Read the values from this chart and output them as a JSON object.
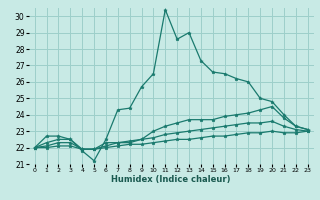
{
  "xlabel": "Humidex (Indice chaleur)",
  "bg_color": "#c8eae5",
  "grid_color": "#9dcfca",
  "line_color": "#1a7a6e",
  "xlim": [
    -0.5,
    23.5
  ],
  "ylim": [
    21,
    30.5
  ],
  "yticks": [
    21,
    22,
    23,
    24,
    25,
    26,
    27,
    28,
    29,
    30
  ],
  "xticks": [
    0,
    1,
    2,
    3,
    4,
    5,
    6,
    7,
    8,
    9,
    10,
    11,
    12,
    13,
    14,
    15,
    16,
    17,
    18,
    19,
    20,
    21,
    22,
    23
  ],
  "series": [
    {
      "x": [
        0,
        1,
        2,
        3,
        4,
        5,
        6,
        7,
        8,
        9,
        10,
        11,
        12,
        13,
        14,
        15,
        16,
        17,
        18,
        19,
        20,
        21,
        22,
        23
      ],
      "y": [
        22.0,
        22.7,
        22.7,
        22.5,
        21.8,
        21.2,
        22.5,
        24.3,
        24.4,
        25.7,
        26.5,
        30.4,
        28.6,
        29.0,
        27.3,
        26.6,
        26.5,
        26.2,
        26.0,
        25.0,
        24.8,
        24.0,
        23.3,
        23.1
      ]
    },
    {
      "x": [
        0,
        1,
        2,
        3,
        4,
        5,
        6,
        7,
        8,
        9,
        10,
        11,
        12,
        13,
        14,
        15,
        16,
        17,
        18,
        19,
        20,
        21,
        22,
        23
      ],
      "y": [
        22.0,
        22.3,
        22.5,
        22.5,
        21.9,
        21.9,
        22.3,
        22.3,
        22.3,
        22.5,
        23.0,
        23.3,
        23.5,
        23.7,
        23.7,
        23.7,
        23.9,
        24.0,
        24.1,
        24.3,
        24.5,
        23.8,
        23.3,
        23.1
      ]
    },
    {
      "x": [
        0,
        1,
        2,
        3,
        4,
        5,
        6,
        7,
        8,
        9,
        10,
        11,
        12,
        13,
        14,
        15,
        16,
        17,
        18,
        19,
        20,
        21,
        22,
        23
      ],
      "y": [
        22.0,
        22.1,
        22.3,
        22.3,
        21.9,
        21.9,
        22.1,
        22.3,
        22.4,
        22.5,
        22.6,
        22.8,
        22.9,
        23.0,
        23.1,
        23.2,
        23.3,
        23.4,
        23.5,
        23.5,
        23.6,
        23.3,
        23.1,
        23.0
      ]
    },
    {
      "x": [
        0,
        1,
        2,
        3,
        4,
        5,
        6,
        7,
        8,
        9,
        10,
        11,
        12,
        13,
        14,
        15,
        16,
        17,
        18,
        19,
        20,
        21,
        22,
        23
      ],
      "y": [
        22.0,
        22.0,
        22.1,
        22.1,
        21.9,
        21.9,
        22.0,
        22.1,
        22.2,
        22.2,
        22.3,
        22.4,
        22.5,
        22.5,
        22.6,
        22.7,
        22.7,
        22.8,
        22.9,
        22.9,
        23.0,
        22.9,
        22.9,
        23.0
      ]
    }
  ]
}
